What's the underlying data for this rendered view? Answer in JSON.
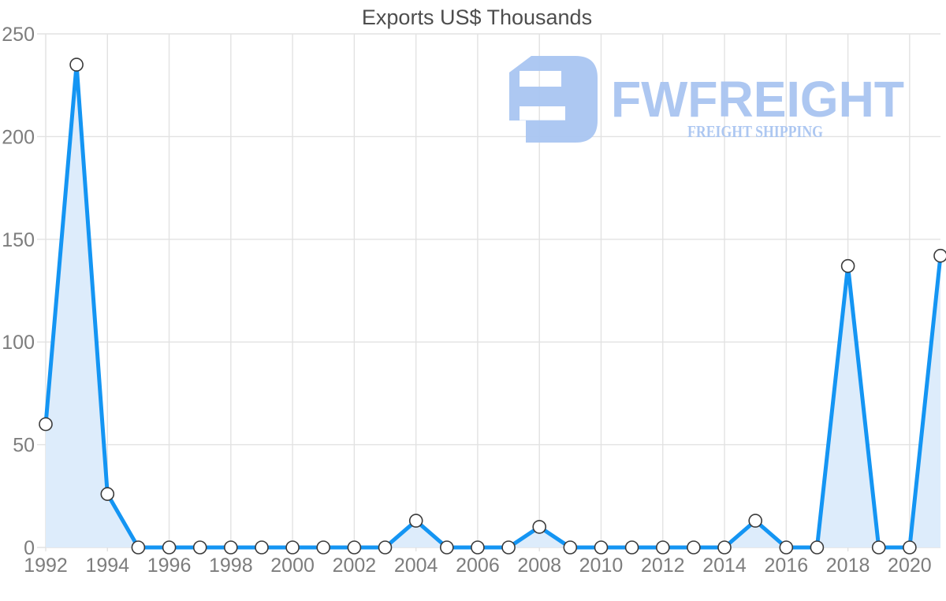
{
  "title": "Exports US$ Thousands",
  "watermark": {
    "brand": "FWFREIGHT",
    "tagline": "FREIGHT SHIPPING",
    "color": "#a9c5f1"
  },
  "chart_data": {
    "type": "area",
    "title": "Exports US$ Thousands",
    "xlabel": "",
    "ylabel": "",
    "x": [
      1992,
      1993,
      1994,
      1995,
      1996,
      1997,
      1998,
      1999,
      2000,
      2001,
      2002,
      2003,
      2004,
      2005,
      2006,
      2007,
      2008,
      2009,
      2010,
      2011,
      2012,
      2013,
      2014,
      2015,
      2016,
      2017,
      2018,
      2019,
      2020,
      2021
    ],
    "series": [
      {
        "name": "Exports US$ Thousands",
        "values": [
          60,
          235,
          26,
          0,
          0,
          0,
          0,
          0,
          0,
          0,
          0,
          0,
          13,
          0,
          0,
          0,
          10,
          0,
          0,
          0,
          0,
          0,
          0,
          13,
          0,
          0,
          137,
          0,
          0,
          142
        ]
      }
    ],
    "ylim": [
      0,
      250
    ],
    "ytick_step": 50,
    "ytick_labels": [
      "0",
      "50",
      "100",
      "150",
      "200",
      "250"
    ],
    "xtick_labels": [
      "1992",
      "1994",
      "1996",
      "1998",
      "2000",
      "2002",
      "2004",
      "2006",
      "2008",
      "2010",
      "2012",
      "2014",
      "2016",
      "2018",
      "2020"
    ],
    "grid": true,
    "legend": false,
    "marker": "circle",
    "colors": {
      "line": "#1495f3",
      "fill": "#ddecfb",
      "grid": "#e2e2e2",
      "marker_fill": "#ffffff",
      "marker_stroke": "#3a3a3a",
      "axis_label": "#7d7d7d",
      "title": "#4d4d4d"
    }
  }
}
